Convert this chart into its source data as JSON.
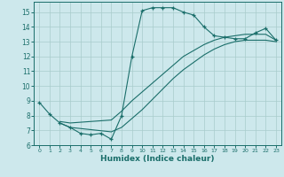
{
  "xlabel": "Humidex (Indice chaleur)",
  "xlim": [
    -0.5,
    23.5
  ],
  "ylim": [
    6.0,
    15.7
  ],
  "yticks": [
    6,
    7,
    8,
    9,
    10,
    11,
    12,
    13,
    14,
    15
  ],
  "xticks": [
    0,
    1,
    2,
    3,
    4,
    5,
    6,
    7,
    8,
    9,
    10,
    11,
    12,
    13,
    14,
    15,
    16,
    17,
    18,
    19,
    20,
    21,
    22,
    23
  ],
  "bg_color": "#cde8ec",
  "line_color": "#1a6e6a",
  "grid_color": "#a8cccc",
  "curve1_x": [
    0,
    1,
    2,
    3,
    4,
    5,
    6,
    7,
    8,
    9,
    10,
    11,
    12,
    13,
    14,
    15,
    16,
    17,
    18,
    19,
    20,
    21,
    22,
    23
  ],
  "curve1_y": [
    8.9,
    8.1,
    7.5,
    7.2,
    6.8,
    6.7,
    6.8,
    6.4,
    8.0,
    12.0,
    15.1,
    15.3,
    15.3,
    15.3,
    15.0,
    14.8,
    14.0,
    13.4,
    13.3,
    13.2,
    13.2,
    13.6,
    13.9,
    13.1
  ],
  "curve2_x": [
    2,
    3,
    7,
    8,
    9,
    10,
    11,
    12,
    13,
    14,
    15,
    16,
    17,
    18,
    19,
    20,
    21,
    22,
    23
  ],
  "curve2_y": [
    7.6,
    7.5,
    7.7,
    8.3,
    9.0,
    9.6,
    10.2,
    10.8,
    11.4,
    12.0,
    12.4,
    12.8,
    13.1,
    13.3,
    13.4,
    13.5,
    13.5,
    13.5,
    13.1
  ],
  "curve3_x": [
    2,
    3,
    7,
    8,
    9,
    10,
    11,
    12,
    13,
    14,
    15,
    16,
    17,
    18,
    19,
    20,
    21,
    22,
    23
  ],
  "curve3_y": [
    7.5,
    7.2,
    6.9,
    7.2,
    7.8,
    8.4,
    9.1,
    9.8,
    10.5,
    11.1,
    11.6,
    12.1,
    12.5,
    12.8,
    13.0,
    13.1,
    13.1,
    13.1,
    13.0
  ]
}
